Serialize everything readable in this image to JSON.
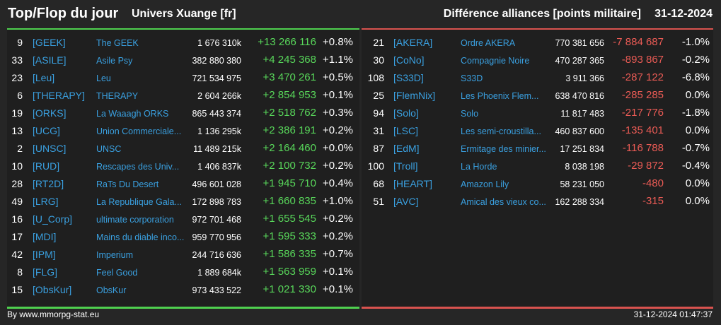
{
  "header": {
    "title": "Top/Flop du jour",
    "subtitle": "Univers Xuange [fr]",
    "right_title": "Différence alliances [points militaire]",
    "date": "31-12-2024"
  },
  "top": [
    {
      "rank": "9",
      "tag": "[GEEK]",
      "name": "The GEEK",
      "points": "1 676 310k",
      "diff": "+13 266 116",
      "pct": "+0.8%"
    },
    {
      "rank": "33",
      "tag": "[ASILE]",
      "name": "Asile Psy",
      "points": "382 880 380",
      "diff": "+4 245 368",
      "pct": "+1.1%"
    },
    {
      "rank": "23",
      "tag": "[Leu]",
      "name": "Leu",
      "points": "721 534 975",
      "diff": "+3 470 261",
      "pct": "+0.5%"
    },
    {
      "rank": "6",
      "tag": "[THERAPY]",
      "name": "THERAPY",
      "points": "2 604 266k",
      "diff": "+2 854 953",
      "pct": "+0.1%"
    },
    {
      "rank": "19",
      "tag": "[ORKS]",
      "name": "La Waaagh ORKS",
      "points": "865 443 374",
      "diff": "+2 518 762",
      "pct": "+0.3%"
    },
    {
      "rank": "13",
      "tag": "[UCG]",
      "name": "Union Commerciale...",
      "points": "1 136 295k",
      "diff": "+2 386 191",
      "pct": "+0.2%"
    },
    {
      "rank": "2",
      "tag": "[UNSC]",
      "name": "UNSC",
      "points": "11 489 215k",
      "diff": "+2 164 460",
      "pct": "+0.0%"
    },
    {
      "rank": "10",
      "tag": "[RUD]",
      "name": "Rescapes des Univ...",
      "points": "1 406 837k",
      "diff": "+2 100 732",
      "pct": "+0.2%"
    },
    {
      "rank": "28",
      "tag": "[RT2D]",
      "name": "RaTs Du Desert",
      "points": "496 601 028",
      "diff": "+1 945 710",
      "pct": "+0.4%"
    },
    {
      "rank": "49",
      "tag": "[LRG]",
      "name": "La Republique Gala...",
      "points": "172 898 783",
      "diff": "+1 660 835",
      "pct": "+1.0%"
    },
    {
      "rank": "16",
      "tag": "[U_Corp]",
      "name": "ultimate corporation",
      "points": "972 701 468",
      "diff": "+1 655 545",
      "pct": "+0.2%"
    },
    {
      "rank": "17",
      "tag": "[MDI]",
      "name": "Mains du diable inco...",
      "points": "959 770 956",
      "diff": "+1 595 333",
      "pct": "+0.2%"
    },
    {
      "rank": "42",
      "tag": "[IPM]",
      "name": "Imperium",
      "points": "244 716 636",
      "diff": "+1 586 335",
      "pct": "+0.7%"
    },
    {
      "rank": "8",
      "tag": "[FLG]",
      "name": "Feel Good",
      "points": "1 889 684k",
      "diff": "+1 563 959",
      "pct": "+0.1%"
    },
    {
      "rank": "15",
      "tag": "[ObsKur]",
      "name": "ObsKur",
      "points": "973 433 522",
      "diff": "+1 021 330",
      "pct": "+0.1%"
    }
  ],
  "flop": [
    {
      "rank": "21",
      "tag": "[AKERA]",
      "name": "Ordre AKERA",
      "points": "770 381 656",
      "diff": "-7 884 687",
      "pct": "-1.0%"
    },
    {
      "rank": "30",
      "tag": "[CoNo]",
      "name": "Compagnie Noire",
      "points": "470 287 365",
      "diff": "-893 867",
      "pct": "-0.2%"
    },
    {
      "rank": "108",
      "tag": "[S33D]",
      "name": "S33D",
      "points": "3 911 366",
      "diff": "-287 122",
      "pct": "-6.8%"
    },
    {
      "rank": "25",
      "tag": "[FlemNix]",
      "name": "Les Phoenix Flem...",
      "points": "638 470 816",
      "diff": "-285 285",
      "pct": "0.0%"
    },
    {
      "rank": "94",
      "tag": "[Solo]",
      "name": "Solo",
      "points": "11 817 483",
      "diff": "-217 776",
      "pct": "-1.8%"
    },
    {
      "rank": "31",
      "tag": "[LSC]",
      "name": "Les semi-croustilla...",
      "points": "460 837 600",
      "diff": "-135 401",
      "pct": "0.0%"
    },
    {
      "rank": "87",
      "tag": "[EdM]",
      "name": "Ermitage des minier...",
      "points": "17 251 834",
      "diff": "-116 788",
      "pct": "-0.7%"
    },
    {
      "rank": "100",
      "tag": "[Troll]",
      "name": "La Horde",
      "points": "8 038 198",
      "diff": "-29 872",
      "pct": "-0.4%"
    },
    {
      "rank": "68",
      "tag": "[HEART]",
      "name": "Amazon Lily",
      "points": "58 231 050",
      "diff": "-480",
      "pct": "0.0%"
    },
    {
      "rank": "51",
      "tag": "[AVC]",
      "name": "Amical des vieux co...",
      "points": "162 288 334",
      "diff": "-315",
      "pct": "0.0%"
    }
  ],
  "footer": {
    "credit": "By www.mmorpg-stat.eu",
    "timestamp": "31-12-2024 01:47:37"
  },
  "colors": {
    "background": "#262626",
    "panel": "#1f1f1f",
    "positive": "#58d65a",
    "negative": "#ea5b55",
    "link": "#3aa0e0"
  }
}
